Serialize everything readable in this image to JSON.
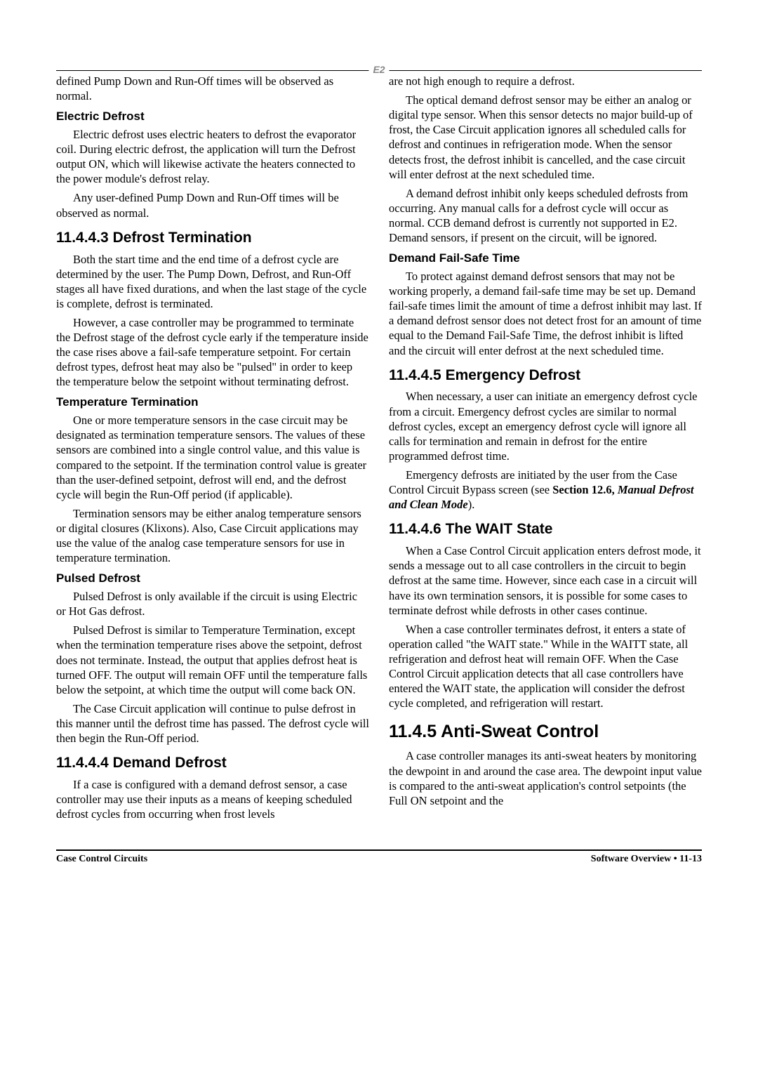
{
  "header": {
    "logo": "E2"
  },
  "col1": {
    "p1": "defined Pump Down and Run-Off times will be observed as normal.",
    "h_electric": "Electric Defrost",
    "p2": "Electric defrost uses electric heaters to defrost the evaporator coil. During electric defrost, the application will turn the Defrost output ON, which will likewise activate the heaters connected to the power module's defrost relay.",
    "p3": "Any user-defined Pump Down and Run-Off times will be observed as normal.",
    "h_11443": "11.4.4.3    Defrost Termination",
    "p4": "Both the start time and the end time of a defrost cycle are determined by the user. The Pump Down, Defrost, and Run-Off stages all have fixed durations, and when the last stage of the cycle is complete, defrost is terminated.",
    "p5": "However, a case controller may be programmed to terminate the Defrost stage of the defrost cycle early if the temperature inside the case rises above a fail-safe temperature setpoint. For certain defrost types, defrost heat may also be \"pulsed\" in order to keep the temperature below the setpoint without terminating defrost.",
    "h_tempterm": "Temperature Termination",
    "p6": "One or more temperature sensors in the case circuit may be designated as termination temperature sensors. The values of these sensors are combined into a single control value, and this value is compared to the setpoint. If the termination control value is greater than the user-defined setpoint, defrost will end, and the defrost cycle will begin the Run-Off period (if applicable).",
    "p7": "Termination sensors may be either analog temperature sensors or digital closures (Klixons). Also, Case Circuit applications may use the value of the analog case temperature sensors for use in temperature termination.",
    "h_pulsed": "Pulsed Defrost",
    "p8": "Pulsed Defrost is only available if the circuit is using Electric or Hot Gas defrost.",
    "p9": "Pulsed Defrost is similar to Temperature Termination, except when the termination temperature rises above the setpoint, defrost does not terminate. Instead, the output that applies defrost heat is turned OFF. The output will remain OFF until the temperature falls below the setpoint, at which time the output will come back ON.",
    "p10": "The Case Circuit application will continue to pulse defrost in this manner until the defrost time has passed. The defrost cycle will then begin the Run-Off period.",
    "h_11444": "11.4.4.4    Demand Defrost",
    "p11": "If a case is configured with a demand defrost sensor, a case controller may use their inputs as a means of keeping scheduled defrost cycles from occurring when frost levels"
  },
  "col2": {
    "p1": "are not high enough to require a defrost.",
    "p2": "The optical demand defrost sensor may be either an analog or digital type sensor. When this sensor detects no major build-up of frost, the Case Circuit application ignores all scheduled calls for defrost and continues in refrigeration mode. When the sensor detects frost, the defrost inhibit is cancelled, and the case circuit will enter defrost at the next scheduled time.",
    "p3": "A demand defrost inhibit only keeps scheduled defrosts from occurring. Any manual calls for a defrost cycle will occur as normal. CCB demand defrost is currently not supported in E2. Demand sensors, if present on the circuit, will be ignored.",
    "h_failsafe": "Demand Fail-Safe Time",
    "p4": "To protect against demand defrost sensors that may not be working properly, a demand fail-safe time may be set up. Demand fail-safe times limit the amount of time a defrost inhibit may last. If a demand defrost sensor does not detect frost for an amount of time equal to the Demand Fail-Safe Time, the defrost inhibit is lifted and the circuit will enter defrost at the next scheduled time.",
    "h_11445": "11.4.4.5    Emergency Defrost",
    "p5": "When necessary, a user can initiate an emergency defrost cycle from a circuit. Emergency defrost cycles are similar to normal defrost cycles, except an emergency defrost cycle will ignore all calls for termination and remain in defrost for the entire programmed defrost time.",
    "p6a": "Emergency defrosts are initiated by the user from the Case Control Circuit Bypass screen (see ",
    "p6b": "Section 12.6, ",
    "p6c": "Manual Defrost and Clean Mode",
    "p6d": ").",
    "h_11446": "11.4.4.6    The WAIT State",
    "p7": "When a Case Control Circuit application enters defrost mode, it sends a message out to all case controllers in the circuit to begin defrost at the same time. However, since each case in a circuit will have its own termination sensors, it is possible for some cases to terminate defrost while defrosts in other cases continue.",
    "p8": "When a case controller terminates defrost, it enters a state of operation called \"the WAIT state.\" While in the WAITT state, all refrigeration and defrost heat will remain OFF. When the Case Control Circuit application detects that all case controllers have entered the WAIT state, the application will consider the defrost cycle completed, and refrigeration will restart.",
    "h_1145": "11.4.5    Anti-Sweat Control",
    "p9": "A case controller manages its anti-sweat heaters by monitoring the dewpoint in and around the case area. The dewpoint input value is compared to the anti-sweat application's control setpoints (the Full ON setpoint and the"
  },
  "footer": {
    "left": "Case Control Circuits",
    "right_a": "Software Overview • ",
    "right_b": "11-13"
  }
}
